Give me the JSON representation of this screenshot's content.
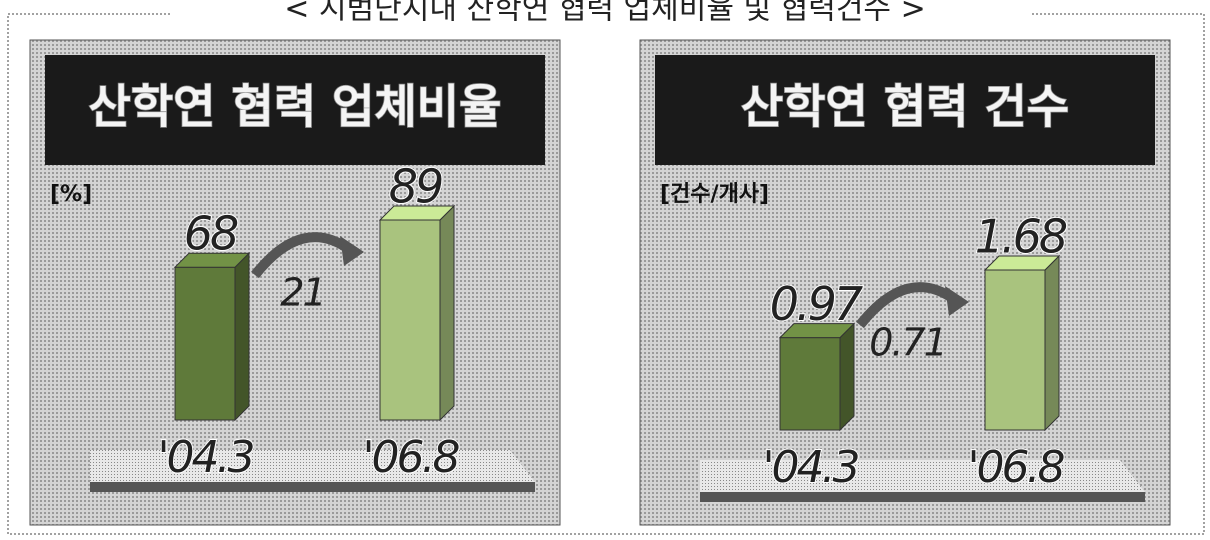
{
  "title": "< 시범단지내 산학연 협력 업체비율 및 협력건수 >",
  "chart_data": [
    {
      "type": "bar",
      "title": "산학연 협력 업체비율",
      "ylabel": "[%]",
      "categories": [
        "'04.3",
        "'06.8"
      ],
      "values": [
        68,
        89
      ],
      "annotation": "21",
      "colors": [
        "#5f7a3a",
        "#a9c37e"
      ]
    },
    {
      "type": "bar",
      "title": "산학연 협력 건수",
      "ylabel": "[건수/개사]",
      "categories": [
        "'04.3",
        "'06.8"
      ],
      "values": [
        0.97,
        1.68
      ],
      "annotation": "0.71",
      "colors": [
        "#5f7a3a",
        "#a9c37e"
      ]
    }
  ]
}
